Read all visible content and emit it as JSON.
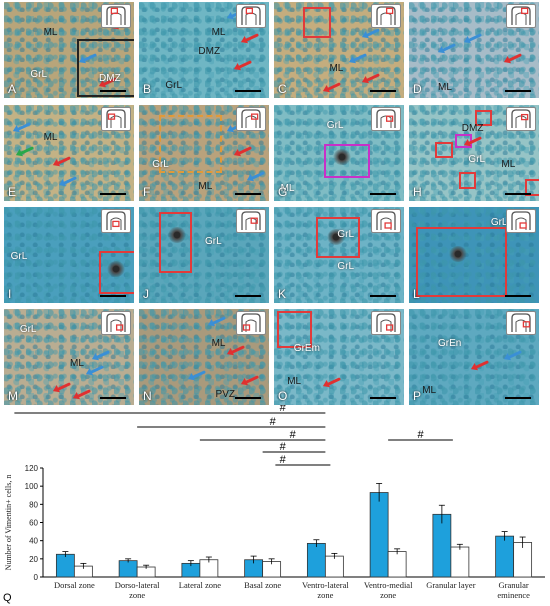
{
  "panels": [
    {
      "id": "A",
      "regions": [
        "ML",
        "GrL",
        "DMZ"
      ]
    },
    {
      "id": "B",
      "regions": [
        "ML",
        "DMZ",
        "GrL"
      ]
    },
    {
      "id": "C",
      "regions": [
        "ML"
      ]
    },
    {
      "id": "D",
      "regions": [
        "ML"
      ]
    },
    {
      "id": "E",
      "regions": [
        "ML"
      ]
    },
    {
      "id": "F",
      "regions": [
        "GrL",
        "ML"
      ]
    },
    {
      "id": "G",
      "regions": [
        "GrL",
        "ML"
      ]
    },
    {
      "id": "H",
      "regions": [
        "DMZ",
        "GrL",
        "ML"
      ]
    },
    {
      "id": "I",
      "regions": [
        "GrL"
      ]
    },
    {
      "id": "J",
      "regions": [
        "GrL"
      ]
    },
    {
      "id": "K",
      "regions": [
        "GrL",
        "GrL"
      ]
    },
    {
      "id": "L",
      "regions": [
        "GrL"
      ]
    },
    {
      "id": "M",
      "regions": [
        "GrL",
        "ML"
      ]
    },
    {
      "id": "N",
      "regions": [
        "ML",
        "PVZ"
      ]
    },
    {
      "id": "O",
      "regions": [
        "GrEm",
        "ML"
      ]
    },
    {
      "id": "P",
      "regions": [
        "GrEn",
        "ML"
      ]
    }
  ],
  "colors": {
    "stain_blue": "#3fa6c7",
    "tissue_tan": "#c9b48a",
    "arrow_blue": "#3a8fd6",
    "arrow_red": "#e03030",
    "arrow_green": "#2aa84a",
    "box_red": "#e23a3a",
    "bar_filled": "#1ea0dc",
    "bar_open": "#ffffff"
  },
  "chart_data": {
    "type": "bar",
    "panel_label": "Q",
    "ylabel": "Number of Vimentin+ cells, n",
    "ylim": [
      0,
      120
    ],
    "yticks": [
      0,
      20,
      40,
      60,
      80,
      100,
      120
    ],
    "categories": [
      "Dorsal zone",
      "Dorso-lateral zone",
      "Lateral zone",
      "Basal zone",
      "Ventro-lateral zone",
      "Ventro-medial zone",
      "Granular layer",
      "Granular eminence"
    ],
    "category_lines": [
      [
        "Dorsal zone"
      ],
      [
        "Dorso-lateral",
        "zone"
      ],
      [
        "Lateral zone"
      ],
      [
        "Basal zone"
      ],
      [
        "Ventro-lateral",
        "zone"
      ],
      [
        "Ventro-medial",
        "zone"
      ],
      [
        "Granular layer"
      ],
      [
        "Granular",
        "eminence"
      ]
    ],
    "series": [
      {
        "fill": "#1ea0dc",
        "values": [
          25,
          18,
          15,
          19,
          37,
          93,
          69,
          45
        ],
        "errors": [
          3,
          2,
          3,
          4,
          4,
          10,
          10,
          5
        ]
      },
      {
        "fill": "#ffffff",
        "values": [
          12,
          11,
          19,
          17,
          23,
          28,
          33,
          38
        ],
        "errors": [
          3,
          2,
          3,
          3,
          3,
          3,
          3,
          6
        ]
      }
    ],
    "significance_mark": "#",
    "significance_lines": [
      {
        "from": 0,
        "to": 4,
        "mark": "#"
      },
      {
        "from": 1,
        "to": 4,
        "mark": "#"
      },
      {
        "from": 2,
        "to": 4,
        "mark": "#"
      },
      {
        "from": 3,
        "to": 4,
        "mark": "#"
      },
      {
        "from": 4,
        "to": 4,
        "mark": "#"
      },
      {
        "from": 5,
        "to": 6,
        "mark": "#"
      }
    ]
  }
}
